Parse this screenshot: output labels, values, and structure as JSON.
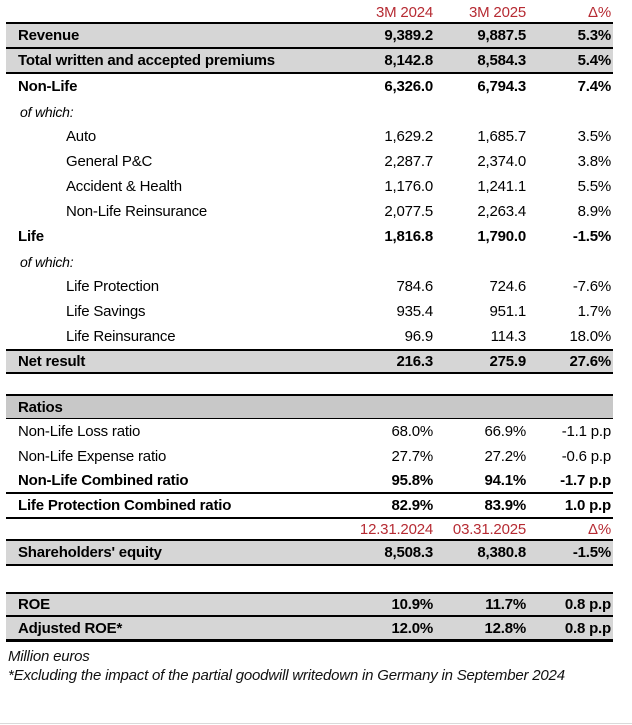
{
  "colors": {
    "accent_red": "#B62B33",
    "row_shade": "#D6D6D6",
    "ratios_shade": "#C8C8C8",
    "border_black": "#000000"
  },
  "table": {
    "rows": [
      {
        "name": "column-header-period",
        "label": "",
        "values": [
          "3M 2024",
          "3M 2025",
          "Δ%"
        ],
        "red": true,
        "colhead": true,
        "bb": "thick"
      },
      {
        "name": "row-revenue",
        "label": "Revenue",
        "values": [
          "9,389.2",
          "9,887.5",
          "5.3%"
        ],
        "bold": true,
        "shaded": true,
        "bb": "thick"
      },
      {
        "name": "row-total-premiums",
        "label": "Total written and accepted premiums",
        "values": [
          "8,142.8",
          "8,584.3",
          "5.4%"
        ],
        "bold": true,
        "shaded": true,
        "bb": "thick"
      },
      {
        "name": "row-non-life",
        "label": "Non-Life",
        "values": [
          "6,326.0",
          "6,794.3",
          "7.4%"
        ],
        "bold": true
      },
      {
        "name": "row-of-which-nonlife",
        "label": "of which:",
        "values": [
          "",
          "",
          ""
        ],
        "ofwhich": true
      },
      {
        "name": "row-auto",
        "label": "Auto",
        "values": [
          "1,629.2",
          "1,685.7",
          "3.5%"
        ],
        "indent": true
      },
      {
        "name": "row-general-pc",
        "label": "General P&C",
        "values": [
          "2,287.7",
          "2,374.0",
          "3.8%"
        ],
        "indent": true
      },
      {
        "name": "row-accident-health",
        "label": "Accident & Health",
        "values": [
          "1,176.0",
          "1,241.1",
          "5.5%"
        ],
        "indent": true
      },
      {
        "name": "row-nonlife-reinsurance",
        "label": "Non-Life Reinsurance",
        "values": [
          "2,077.5",
          "2,263.4",
          "8.9%"
        ],
        "indent": true
      },
      {
        "name": "row-life",
        "label": "Life",
        "values": [
          "1,816.8",
          "1,790.0",
          "-1.5%"
        ],
        "bold": true
      },
      {
        "name": "row-of-which-life",
        "label": "of which:",
        "values": [
          "",
          "",
          ""
        ],
        "ofwhich": true
      },
      {
        "name": "row-life-protection",
        "label": "Life Protection",
        "values": [
          "784.6",
          "724.6",
          "-7.6%"
        ],
        "indent": true
      },
      {
        "name": "row-life-savings",
        "label": "Life Savings",
        "values": [
          "935.4",
          "951.1",
          "1.7%"
        ],
        "indent": true
      },
      {
        "name": "row-life-reinsurance",
        "label": "Life Reinsurance",
        "values": [
          "96.9",
          "114.3",
          "18.0%"
        ],
        "indent": true
      },
      {
        "name": "row-net-result",
        "label": "Net result",
        "values": [
          "216.3",
          "275.9",
          "27.6%"
        ],
        "bold": true,
        "shaded": true,
        "bt": "thick",
        "bb": "thick"
      },
      {
        "name": "spacer-after-net-result",
        "spacer": "sm"
      },
      {
        "name": "row-ratios-header",
        "label": "Ratios",
        "values": [
          "",
          "",
          ""
        ],
        "bold": true,
        "shaded2": true,
        "bt": "thick",
        "bb": "thin"
      },
      {
        "name": "row-nonlife-loss-ratio",
        "label": "Non-Life Loss ratio",
        "values": [
          "68.0%",
          "66.9%",
          "-1.1 p.p"
        ]
      },
      {
        "name": "row-nonlife-expense-ratio",
        "label": "Non-Life Expense ratio",
        "values": [
          "27.7%",
          "27.2%",
          "-0.6 p.p"
        ]
      },
      {
        "name": "row-nonlife-combined-ratio",
        "label": "Non-Life Combined ratio",
        "values": [
          "95.8%",
          "94.1%",
          "-1.7 p.p"
        ],
        "bold": true,
        "bb": "thick"
      },
      {
        "name": "row-life-protection-combined-ratio",
        "label": "Life Protection Combined ratio",
        "values": [
          "82.9%",
          "83.9%",
          "1.0 p.p"
        ],
        "bold": true,
        "bb": "thick"
      },
      {
        "name": "column-header-dates",
        "label": "",
        "values": [
          "12.31.2024",
          "03.31.2025",
          "Δ%"
        ],
        "red": true,
        "colhead": true,
        "bb": "thick"
      },
      {
        "name": "row-shareholders-equity",
        "label": "Shareholders' equity",
        "values": [
          "8,508.3",
          "8,380.8",
          "-1.5%"
        ],
        "bold": true,
        "shaded": true,
        "bb": "thick"
      },
      {
        "name": "spacer-after-equity",
        "spacer": "lg"
      },
      {
        "name": "row-roe",
        "label": "ROE",
        "values": [
          "10.9%",
          "11.7%",
          "0.8 p.p"
        ],
        "bold": true,
        "shaded": true,
        "bt": "thick",
        "bb": "med"
      },
      {
        "name": "row-adjusted-roe",
        "label": "Adjusted ROE*",
        "values": [
          "12.0%",
          "12.8%",
          "0.8 p.p"
        ],
        "bold": true,
        "shaded": true,
        "bb": "xthick"
      }
    ]
  },
  "footnotes": [
    "Million euros",
    "*Excluding the impact of the partial goodwill writedown in Germany in September 2024"
  ]
}
